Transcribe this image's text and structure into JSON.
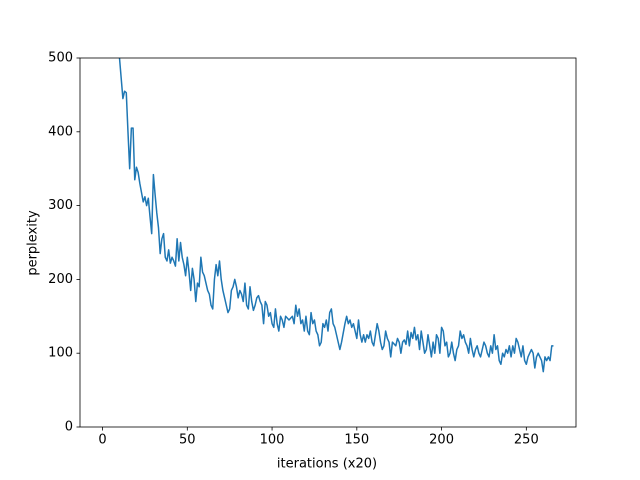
{
  "chart_data": {
    "type": "line",
    "x_label": "iterations (x20)",
    "y_label": "perplexity",
    "xlim": [
      -13.3,
      279.3
    ],
    "xticks": [
      0,
      50,
      100,
      150,
      200,
      250
    ],
    "ylim": [
      0,
      500
    ],
    "yticks": [
      0,
      100,
      200,
      300,
      400,
      500
    ],
    "x": [
      10,
      12,
      13,
      14,
      15,
      16,
      17,
      18,
      19,
      20,
      21,
      22,
      24,
      25,
      26,
      27,
      28,
      29,
      30,
      31,
      32,
      33,
      34,
      35,
      36,
      37,
      38,
      39,
      40,
      41,
      42,
      43,
      44,
      45,
      46,
      47,
      48,
      49,
      50,
      51,
      52,
      53,
      54,
      55,
      56,
      57,
      58,
      59,
      60,
      61,
      62,
      63,
      64,
      65,
      66,
      67,
      68,
      69,
      70,
      71,
      72,
      73,
      74,
      75,
      76,
      77,
      78,
      79,
      80,
      81,
      82,
      83,
      84,
      85,
      86,
      87,
      88,
      89,
      90,
      91,
      92,
      93,
      94,
      95,
      96,
      97,
      98,
      99,
      100,
      101,
      102,
      103,
      104,
      105,
      106,
      107,
      108,
      110,
      112,
      113,
      114,
      115,
      116,
      117,
      118,
      119,
      120,
      121,
      122,
      123,
      124,
      125,
      126,
      127,
      128,
      129,
      130,
      131,
      132,
      133,
      134,
      135,
      136,
      137,
      138,
      139,
      140,
      141,
      143,
      144,
      145,
      146,
      147,
      148,
      149,
      150,
      151,
      152,
      153,
      154,
      155,
      156,
      157,
      158,
      159,
      160,
      161,
      162,
      163,
      164,
      165,
      166,
      167,
      168,
      169,
      170,
      171,
      173,
      174,
      175,
      176,
      177,
      178,
      179,
      180,
      181,
      182,
      183,
      184,
      185,
      186,
      187,
      188,
      189,
      190,
      191,
      192,
      193,
      194,
      195,
      196,
      197,
      198,
      199,
      200,
      201,
      202,
      203,
      204,
      205,
      206,
      207,
      208,
      209,
      210,
      211,
      212,
      213,
      214,
      215,
      216,
      217,
      218,
      219,
      220,
      221,
      222,
      223,
      224,
      225,
      226,
      227,
      228,
      229,
      230,
      231,
      232,
      233,
      234,
      235,
      236,
      237,
      238,
      239,
      240,
      241,
      242,
      243,
      244,
      245,
      246,
      247,
      248,
      249,
      250,
      251,
      252,
      253,
      254,
      255,
      256,
      257,
      258,
      259,
      260,
      261,
      262,
      263,
      264,
      265,
      266
    ],
    "series": [
      {
        "color": "#1f77b4",
        "values": [
          500,
          445,
          455,
          453,
          400,
          350,
          405,
          405,
          335,
          352,
          345,
          330,
          305,
          312,
          300,
          310,
          285,
          262,
          342,
          315,
          290,
          270,
          235,
          255,
          262,
          230,
          225,
          240,
          222,
          230,
          225,
          218,
          255,
          225,
          250,
          230,
          220,
          205,
          230,
          210,
          185,
          215,
          200,
          170,
          195,
          190,
          230,
          210,
          205,
          195,
          185,
          180,
          165,
          160,
          200,
          220,
          205,
          225,
          200,
          185,
          175,
          165,
          155,
          160,
          185,
          190,
          200,
          190,
          175,
          185,
          180,
          170,
          195,
          165,
          160,
          190,
          170,
          158,
          165,
          175,
          178,
          170,
          165,
          140,
          170,
          165,
          150,
          155,
          140,
          135,
          160,
          140,
          130,
          150,
          145,
          135,
          150,
          145,
          150,
          140,
          165,
          150,
          160,
          140,
          145,
          130,
          150,
          130,
          125,
          155,
          140,
          145,
          130,
          125,
          110,
          115,
          140,
          135,
          145,
          130,
          155,
          160,
          140,
          135,
          125,
          115,
          105,
          115,
          140,
          150,
          140,
          145,
          135,
          140,
          130,
          120,
          145,
          125,
          115,
          125,
          115,
          125,
          120,
          130,
          115,
          110,
          125,
          140,
          130,
          115,
          105,
          110,
          130,
          120,
          115,
          95,
          115,
          110,
          120,
          115,
          100,
          115,
          118,
          112,
          130,
          110,
          128,
          120,
          135,
          118,
          125,
          105,
          130,
          115,
          100,
          105,
          125,
          110,
          95,
          115,
          100,
          125,
          120,
          100,
          135,
          130,
          110,
          115,
          95,
          100,
          115,
          100,
          90,
          105,
          110,
          130,
          120,
          125,
          115,
          110,
          100,
          120,
          105,
          95,
          105,
          110,
          100,
          95,
          105,
          115,
          110,
          100,
          95,
          110,
          100,
          125,
          105,
          110,
          90,
          85,
          100,
          95,
          105,
          100,
          110,
          95,
          110,
          100,
          120,
          115,
          105,
          95,
          110,
          90,
          85,
          95,
          100,
          105,
          100,
          80,
          95,
          100,
          95,
          90,
          75,
          95,
          90,
          95,
          90,
          110,
          110
        ]
      }
    ]
  }
}
